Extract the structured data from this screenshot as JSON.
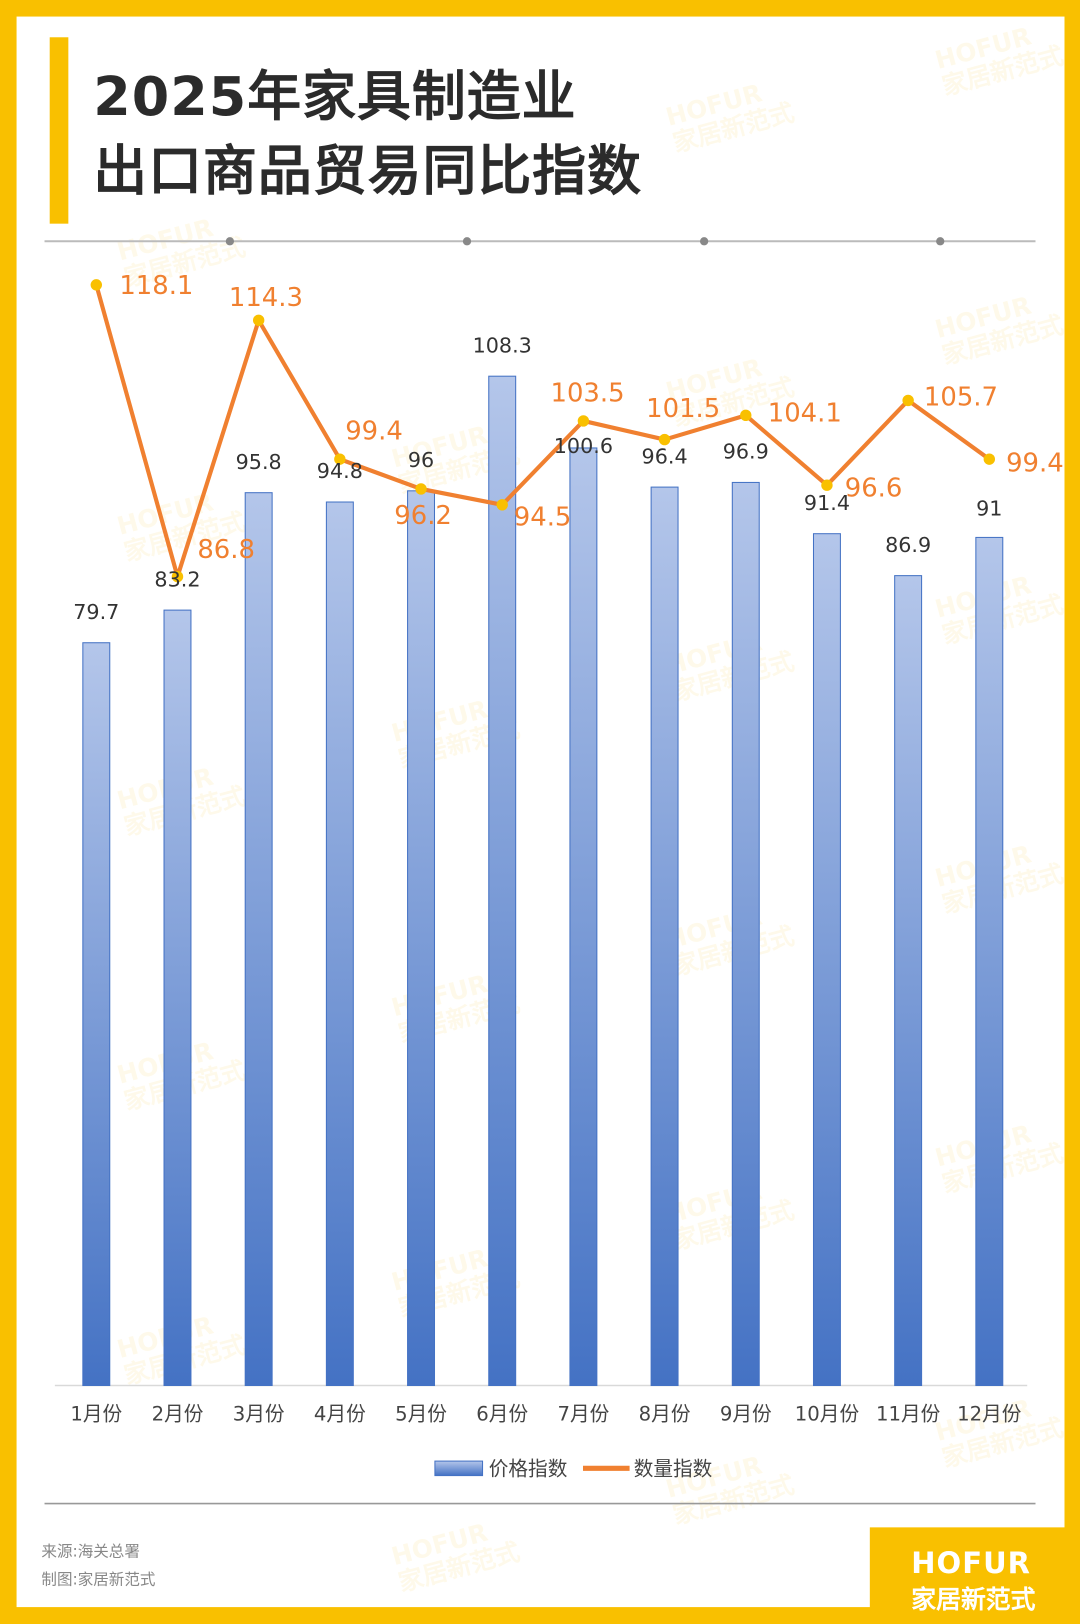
{
  "title": {
    "line1": "2025年家具制造业",
    "line2": "出口商品贸易同比指数"
  },
  "colors": {
    "border": "#F9C000",
    "bar_top": "#B4C6EA",
    "bar_bottom": "#4472C4",
    "line": "#F08030",
    "marker": "#F9C000",
    "line_label": "#F08030"
  },
  "chart_data": {
    "type": "bar+line",
    "categories": [
      "1月份",
      "2月份",
      "3月份",
      "4月份",
      "5月份",
      "6月份",
      "7月份",
      "8月份",
      "9月份",
      "10月份",
      "11月份",
      "12月份"
    ],
    "series": [
      {
        "name": "价格指数",
        "type": "bar",
        "values": [
          79.7,
          83.2,
          95.8,
          94.8,
          96,
          108.3,
          100.6,
          96.4,
          96.9,
          91.4,
          86.9,
          91
        ]
      },
      {
        "name": "数量指数",
        "type": "line",
        "values": [
          118.1,
          86.8,
          114.3,
          99.4,
          96.2,
          94.5,
          103.5,
          101.5,
          104.1,
          96.6,
          105.7,
          99.4
        ]
      }
    ],
    "ylim": [
      0,
      120
    ],
    "grid": false,
    "legend": "bottom"
  },
  "footer": {
    "source": "来源:海关总署",
    "maker": "制图:家居新范式"
  },
  "logo": {
    "en": "HOFUR",
    "cn": "家居新范式"
  },
  "watermark": {
    "en": "HOFUR",
    "cn": "家居新范式"
  }
}
